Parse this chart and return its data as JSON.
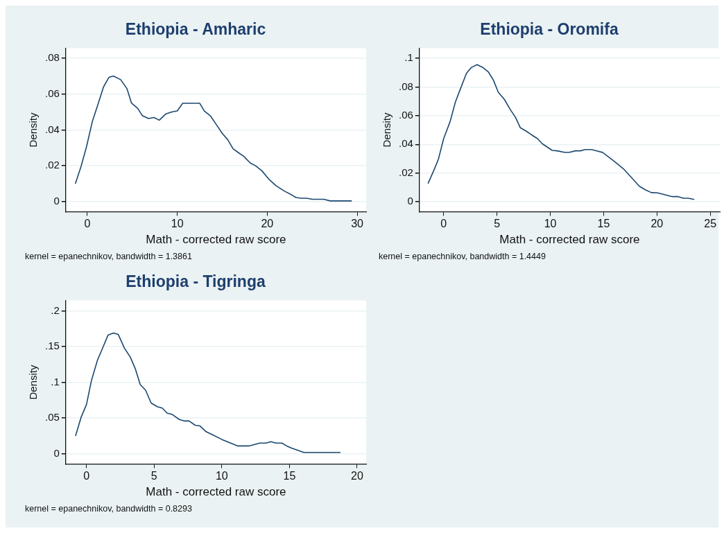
{
  "chart_data": [
    {
      "type": "line",
      "title": "Ethiopia - Amharic",
      "xlabel": "Math - corrected raw score",
      "ylabel": "Density",
      "annotations": [
        "kernel = epanechnikov, bandwidth = 1.3861"
      ],
      "color": "#1a476f",
      "marker": "none",
      "grid": "y",
      "legend": false,
      "x": [
        -1.33,
        -0.7,
        -0.1,
        0.57,
        1.1,
        1.8,
        2.4,
        2.9,
        3.7,
        4.4,
        4.9,
        5.6,
        6.1,
        6.8,
        7.4,
        8.0,
        8.7,
        9.4,
        10.0,
        10.6,
        12.5,
        13.0,
        13.7,
        14.4,
        15.0,
        15.6,
        16.2,
        16.8,
        17.4,
        18.1,
        18.7,
        19.4,
        20.2,
        21.0,
        21.9,
        22.7,
        23.2,
        23.8,
        24.4,
        25.0,
        26.3,
        27.0,
        29.4
      ],
      "values": [
        0.01,
        0.0197,
        0.0305,
        0.045,
        0.053,
        0.064,
        0.0693,
        0.07,
        0.068,
        0.063,
        0.055,
        0.052,
        0.048,
        0.0463,
        0.0469,
        0.0454,
        0.0488,
        0.05,
        0.0506,
        0.0548,
        0.0548,
        0.0505,
        0.0477,
        0.0425,
        0.038,
        0.0346,
        0.0295,
        0.0273,
        0.0252,
        0.0216,
        0.02,
        0.0172,
        0.0124,
        0.0088,
        0.0059,
        0.0038,
        0.0023,
        0.0019,
        0.0019,
        0.0013,
        0.0013,
        0.0004,
        0.0004
      ],
      "xlim": [
        -2.4,
        31
      ],
      "xticks": [
        0,
        10,
        20,
        30
      ],
      "ylim": [
        -0.0056,
        0.0855
      ],
      "yticks": [
        {
          "value": 0,
          "label": "0"
        },
        {
          "value": 0.02,
          "label": ".02"
        },
        {
          "value": 0.04,
          "label": ".04"
        },
        {
          "value": 0.06,
          "label": ".06"
        },
        {
          "value": 0.08,
          "label": ".08"
        }
      ]
    },
    {
      "type": "line",
      "title": "Ethiopia - Oromifa",
      "xlabel": "Math - corrected raw score",
      "ylabel": "Density",
      "annotations": [
        "kernel = epanechnikov, bandwidth = 1.4449"
      ],
      "color": "#1a476f",
      "marker": "none",
      "grid": "y",
      "legend": false,
      "x": [
        -1.47,
        -0.9,
        -0.5,
        0,
        0.6,
        1.1,
        1.56,
        2.14,
        2.6,
        3.13,
        3.63,
        4.2,
        4.66,
        5.12,
        5.7,
        6.27,
        6.73,
        7.19,
        7.77,
        8.34,
        8.8,
        9.26,
        10.18,
        10.64,
        11.33,
        11.8,
        12.36,
        12.82,
        13.28,
        13.86,
        14.43,
        14.9,
        15.46,
        16.15,
        16.84,
        17.53,
        18.34,
        18.9,
        19.48,
        20.06,
        20.63,
        21.44,
        22.0,
        22.47,
        22.93,
        23.5
      ],
      "values": [
        0.0127,
        0.0222,
        0.0295,
        0.044,
        0.0558,
        0.0695,
        0.0785,
        0.0895,
        0.0936,
        0.0956,
        0.0938,
        0.0904,
        0.0849,
        0.0764,
        0.0713,
        0.064,
        0.0589,
        0.0516,
        0.0491,
        0.0462,
        0.044,
        0.0404,
        0.0358,
        0.0355,
        0.0345,
        0.0345,
        0.0355,
        0.0355,
        0.0364,
        0.0364,
        0.0353,
        0.0344,
        0.0313,
        0.0273,
        0.0231,
        0.0176,
        0.0109,
        0.0084,
        0.0064,
        0.0062,
        0.0051,
        0.0036,
        0.0036,
        0.0025,
        0.0025,
        0.0016
      ],
      "xlim": [
        -2.27,
        25.9
      ],
      "xticks": [
        0,
        5,
        10,
        15,
        20,
        25
      ],
      "ylim": [
        -0.0069,
        0.107
      ],
      "yticks": [
        {
          "value": 0,
          "label": "0"
        },
        {
          "value": 0.02,
          "label": ".02"
        },
        {
          "value": 0.04,
          "label": ".04"
        },
        {
          "value": 0.06,
          "label": ".06"
        },
        {
          "value": 0.08,
          "label": ".08"
        },
        {
          "value": 0.1,
          "label": ".1"
        }
      ]
    },
    {
      "type": "line",
      "title": "Ethiopia - Tigringa",
      "xlabel": "Math - corrected raw score",
      "ylabel": "Density",
      "annotations": [
        "kernel = epanechnikov, bandwidth = 0.8293"
      ],
      "color": "#1a476f",
      "marker": "none",
      "grid": "y",
      "legend": false,
      "x": [
        -0.81,
        -0.4,
        0,
        0.36,
        0.81,
        1.17,
        1.59,
        1.99,
        2.35,
        2.8,
        3.25,
        3.61,
        3.97,
        4.37,
        4.78,
        5.23,
        5.6,
        5.96,
        6.35,
        6.86,
        7.22,
        7.58,
        8.03,
        8.39,
        8.84,
        9.39,
        10.02,
        10.65,
        11.19,
        12.0,
        12.82,
        13.27,
        13.63,
        13.99,
        14.44,
        14.8,
        15.16,
        16.06,
        18.77
      ],
      "values": [
        0.025,
        0.051,
        0.069,
        0.102,
        0.131,
        0.147,
        0.166,
        0.169,
        0.167,
        0.148,
        0.135,
        0.119,
        0.097,
        0.089,
        0.071,
        0.066,
        0.064,
        0.057,
        0.055,
        0.048,
        0.046,
        0.046,
        0.04,
        0.039,
        0.031,
        0.026,
        0.02,
        0.015,
        0.011,
        0.011,
        0.015,
        0.015,
        0.017,
        0.015,
        0.015,
        0.011,
        0.008,
        0.002,
        0.002
      ],
      "xlim": [
        -1.53,
        20.67
      ],
      "xticks": [
        0,
        5,
        10,
        15,
        20
      ],
      "ylim": [
        -0.0142,
        0.2145
      ],
      "yticks": [
        {
          "value": 0,
          "label": "0"
        },
        {
          "value": 0.05,
          "label": ".05"
        },
        {
          "value": 0.1,
          "label": ".1"
        },
        {
          "value": 0.15,
          "label": ".15"
        },
        {
          "value": 0.2,
          "label": ".2"
        }
      ]
    }
  ]
}
